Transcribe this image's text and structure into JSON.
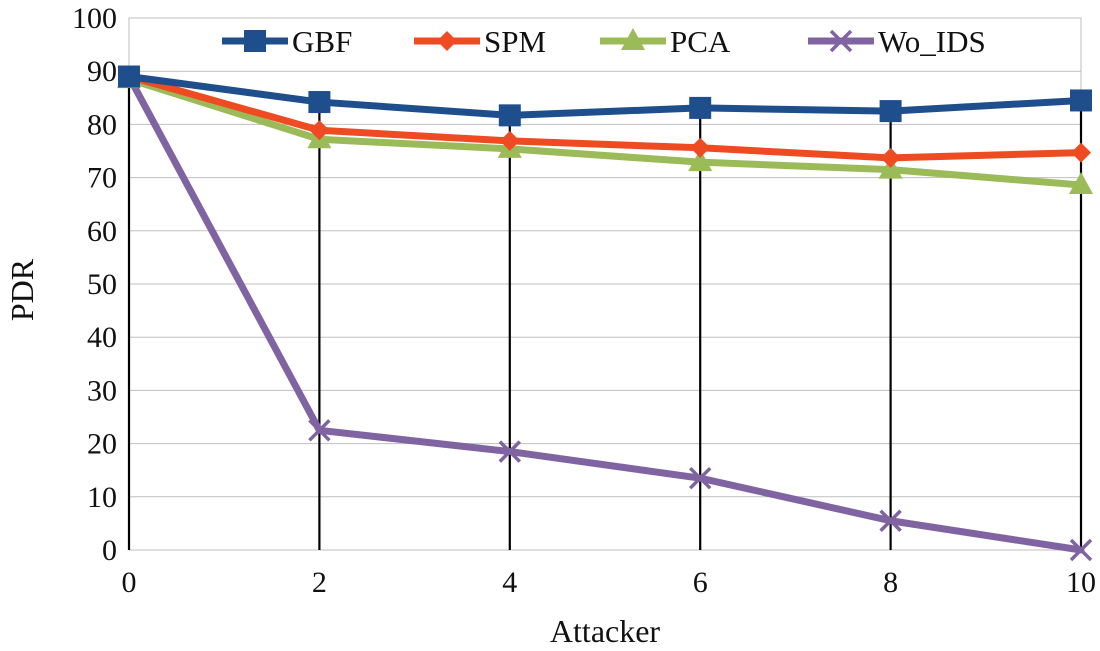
{
  "chart_data": {
    "type": "line",
    "title": "",
    "xlabel": "Attacker",
    "ylabel": "PDR",
    "x": [
      0,
      2,
      4,
      6,
      8,
      10
    ],
    "x_tick_labels": [
      "0",
      "2",
      "4",
      "6",
      "8",
      "10"
    ],
    "xlim": [
      0,
      10
    ],
    "ylim": [
      0,
      100
    ],
    "y_ticks": [
      0,
      10,
      20,
      30,
      40,
      50,
      60,
      70,
      80,
      90,
      100
    ],
    "y_tick_labels": [
      "0",
      "10",
      "20",
      "30",
      "40",
      "50",
      "60",
      "70",
      "80",
      "90",
      "100"
    ],
    "grid": "horizontal",
    "drop_lines": true,
    "legend_position": "top",
    "series": [
      {
        "name": "GBF",
        "values": [
          89,
          84.2,
          81.7,
          83.1,
          82.5,
          84.5
        ],
        "color": "#1F4E8C",
        "marker": "square"
      },
      {
        "name": "SPM",
        "values": [
          89,
          78.9,
          76.9,
          75.6,
          73.7,
          74.7
        ],
        "color": "#EE4B23",
        "marker": "diamond"
      },
      {
        "name": "PCA",
        "values": [
          88.5,
          77.2,
          75.4,
          72.9,
          71.5,
          68.6
        ],
        "color": "#9BBB59",
        "marker": "triangle"
      },
      {
        "name": "Wo_IDS",
        "values": [
          89,
          22.5,
          18.5,
          13.5,
          5.5,
          0
        ],
        "color": "#8064A2",
        "marker": "x"
      }
    ]
  }
}
